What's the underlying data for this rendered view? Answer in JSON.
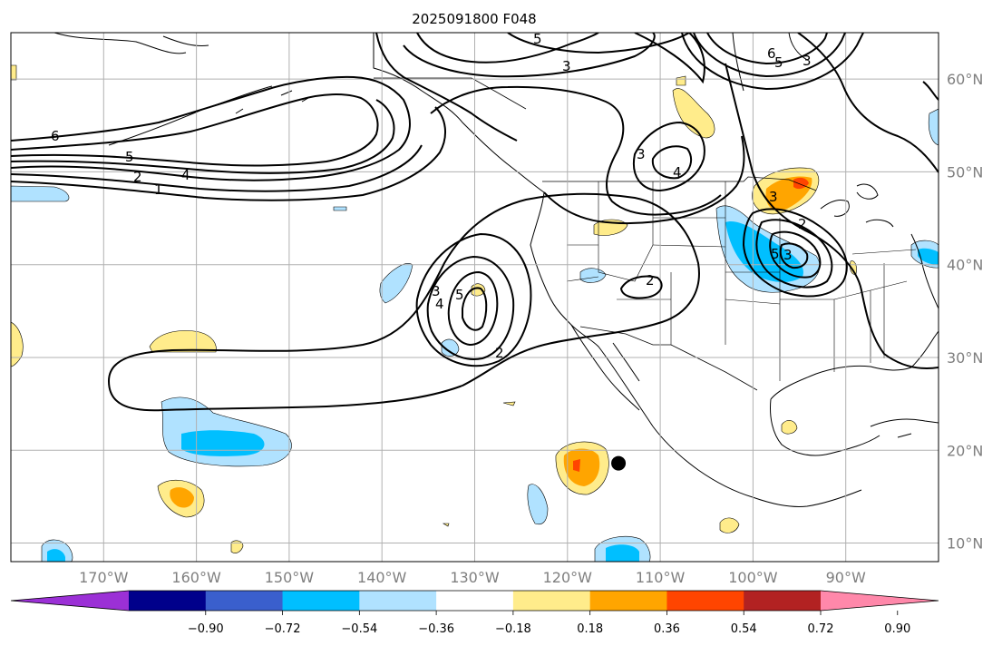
{
  "chart_data": {
    "type": "map-contour",
    "title": "2025091800 F048",
    "map": {
      "lon_range": [
        -180,
        -80
      ],
      "lat_range": [
        8,
        65
      ],
      "meridians": [
        -180,
        -170,
        -160,
        -150,
        -140,
        -130,
        -120,
        -110,
        -100,
        -90
      ],
      "parallels": [
        10,
        20,
        30,
        40,
        50,
        60
      ],
      "lon_labels": [
        "170°W",
        "160°W",
        "150°W",
        "140°W",
        "130°W",
        "120°W",
        "110°W",
        "100°W",
        "90°W"
      ],
      "lat_labels": [
        "10°N",
        "20°N",
        "30°N",
        "40°N",
        "50°N",
        "60°N"
      ],
      "grid": true
    },
    "colorbar": {
      "ticks": [
        "−0.90",
        "−0.72",
        "−0.54",
        "−0.36",
        "−0.18",
        "0.18",
        "0.36",
        "0.54",
        "0.72",
        "0.90"
      ],
      "colors": [
        "#9b30d6",
        "#00008b",
        "#3a5fcd",
        "#00bfff",
        "#b0e2ff",
        "#ffffff",
        "#ffec8b",
        "#ffa500",
        "#ff4500",
        "#b22222",
        "#ff88aa"
      ],
      "extend": "both"
    },
    "contour_labels": [
      "6",
      "5",
      "4",
      "2",
      "1",
      "5",
      "3",
      "6",
      "5",
      "3",
      "3",
      "4",
      "3",
      "4",
      "5",
      "2",
      "2",
      "5",
      "3",
      "3",
      "2"
    ],
    "marker": {
      "lon": -114.5,
      "lat": 18.6,
      "label": ""
    },
    "colors": {
      "coast": "#000000",
      "grid": "#b0b0b0",
      "contour": "#000000"
    }
  }
}
